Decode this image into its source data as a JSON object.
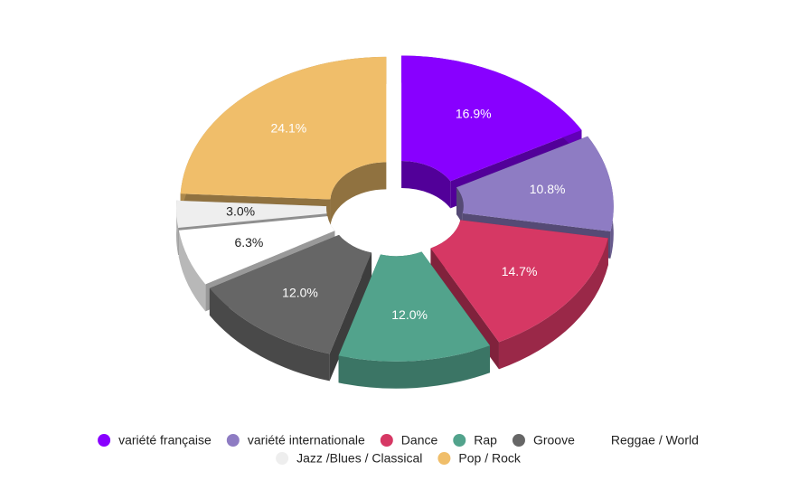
{
  "chart_data": {
    "type": "pie",
    "categories": [
      "variété française",
      "variété internationale",
      "Dance",
      "Rap",
      "Groove",
      "Reggae / World",
      "Jazz /Blues / Classical",
      "Pop / Rock"
    ],
    "values": [
      16.9,
      10.8,
      14.7,
      12.0,
      12.0,
      6.3,
      3.0,
      24.1
    ],
    "value_labels": [
      "16.9%",
      "10.8%",
      "14.7%",
      "12.0%",
      "12.0%",
      "6.3%",
      "3.0%",
      "24.1%"
    ],
    "colors": [
      "#8800ff",
      "#8e7cc3",
      "#d63864",
      "#52a38c",
      "#666666",
      "#ffffff",
      "#eeeeee",
      "#f0be6a"
    ],
    "donut": true,
    "three_d": true,
    "exploded": true,
    "legend": "bottom"
  }
}
